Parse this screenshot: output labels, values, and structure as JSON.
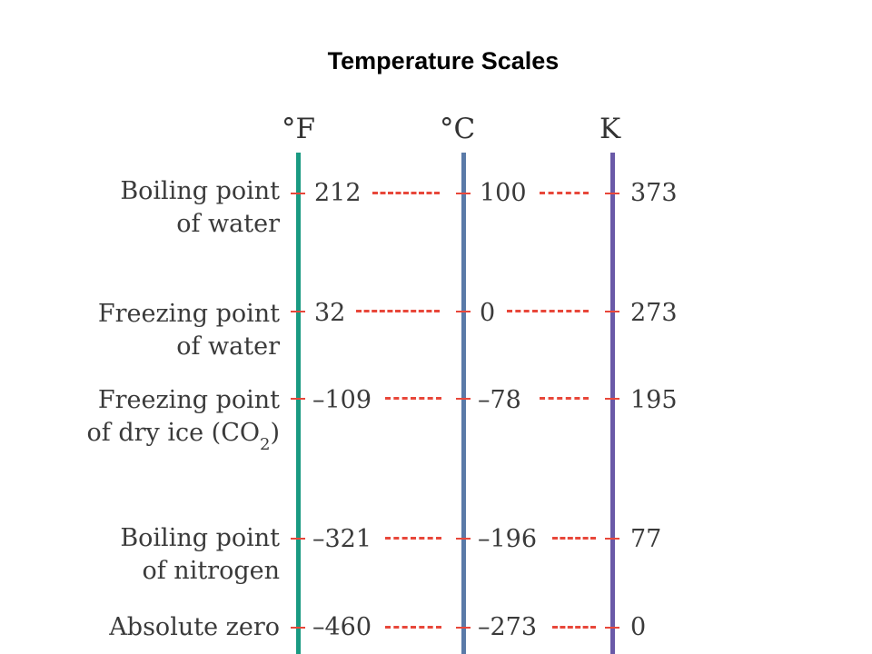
{
  "title": "Temperature Scales",
  "scales": {
    "fahrenheit": "°F",
    "celsius": "°C",
    "kelvin": "K"
  },
  "colors": {
    "fahrenheit_axis": "#1a9a82",
    "celsius_axis": "#5a7aa8",
    "kelvin_axis": "#6a5aa8",
    "dash": "#e8473a"
  },
  "points": [
    {
      "label_line1": "Boiling point",
      "label_line2": "of water",
      "f": "212",
      "c": "100",
      "k": "373"
    },
    {
      "label_line1": "Freezing point",
      "label_line2": "of water",
      "f": "32",
      "c": "0",
      "k": "273"
    },
    {
      "label_line1": "Freezing point",
      "label_line2": "of dry ice (CO",
      "label_sub": "2",
      "label_end": ")",
      "f": "–109",
      "c": "–78",
      "k": "195"
    },
    {
      "label_line1": "Boiling point",
      "label_line2": "of nitrogen",
      "f": "–321",
      "c": "–196",
      "k": "77"
    },
    {
      "label_line1": "Absolute zero",
      "f": "–460",
      "c": "–273",
      "k": "0"
    }
  ]
}
